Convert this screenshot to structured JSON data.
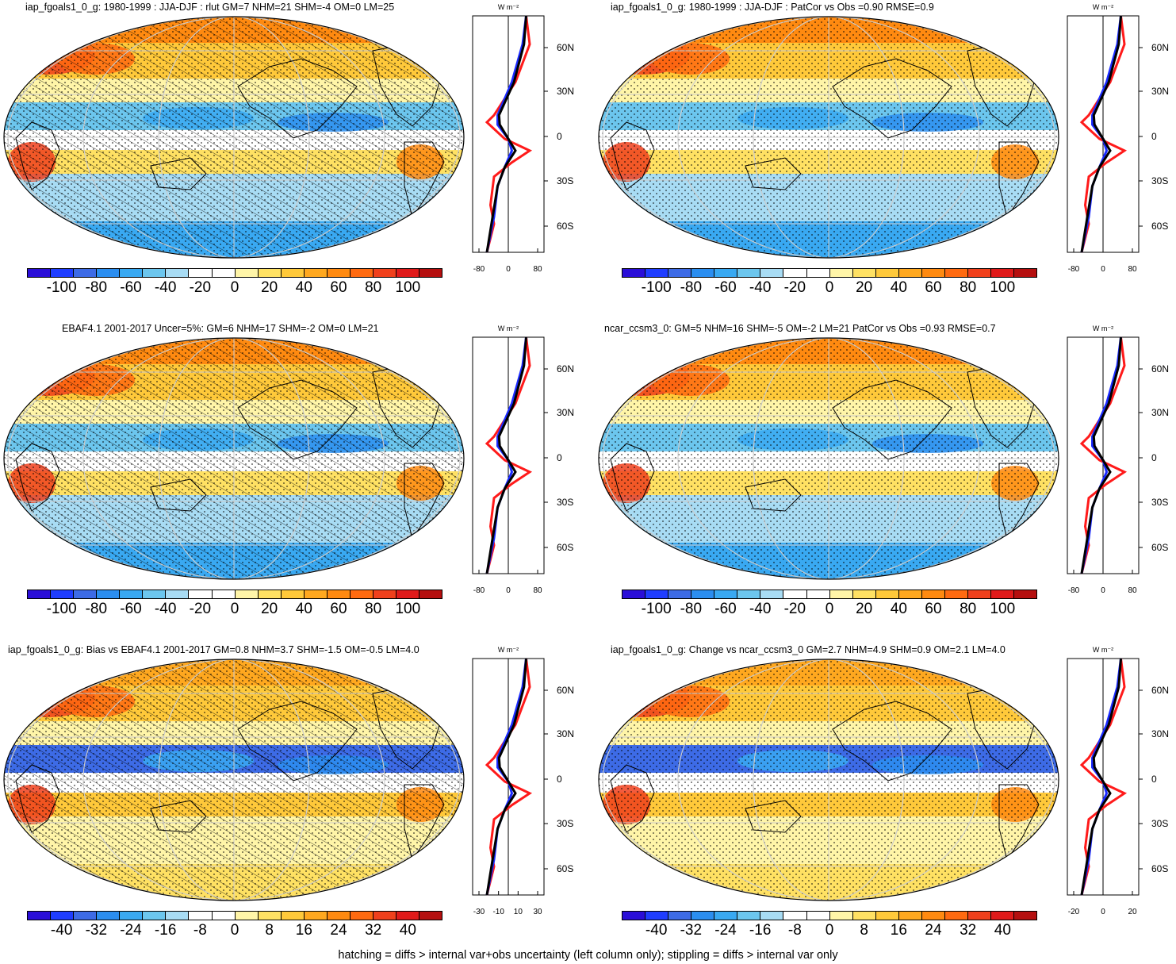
{
  "panels": [
    {
      "id": "p1",
      "title": "iap_fgoals1_0_g: 1980-1999 : JJA-DJF : rlut GM=7 NHM=21 SHM=-4 OM=0 LM=25",
      "colorbar_labels": [
        "-100",
        "-80",
        "-60",
        "-40",
        "-20",
        "0",
        "20",
        "40",
        "60",
        "80",
        "100"
      ],
      "zonal_xticks": [
        "-80",
        "0",
        "80"
      ],
      "hatched": true
    },
    {
      "id": "p2",
      "title": "iap_fgoals1_0_g: 1980-1999 : JJA-DJF : PatCor vs Obs =0.90 RMSE=0.9",
      "colorbar_labels": [
        "-100",
        "-80",
        "-60",
        "-40",
        "-20",
        "0",
        "20",
        "40",
        "60",
        "80",
        "100"
      ],
      "zonal_xticks": [
        "-80",
        "0",
        "80"
      ],
      "hatched": false
    },
    {
      "id": "p3",
      "title": "EBAF4.1 2001-2017 Uncer=5%: GM=6 NHM=17 SHM=-2 OM=0 LM=21",
      "colorbar_labels": [
        "-100",
        "-80",
        "-60",
        "-40",
        "-20",
        "0",
        "20",
        "40",
        "60",
        "80",
        "100"
      ],
      "zonal_xticks": [
        "-80",
        "0",
        "80"
      ],
      "hatched": true
    },
    {
      "id": "p4",
      "title": "ncar_ccsm3_0: GM=5 NHM=16 SHM=-5 OM=-2 LM=21 PatCor vs Obs =0.93 RMSE=0.7",
      "colorbar_labels": [
        "-100",
        "-80",
        "-60",
        "-40",
        "-20",
        "0",
        "20",
        "40",
        "60",
        "80",
        "100"
      ],
      "zonal_xticks": [
        "-80",
        "0",
        "80"
      ],
      "hatched": false
    },
    {
      "id": "p5",
      "title": "iap_fgoals1_0_g: Bias vs EBAF4.1 2001-2017 GM=0.8 NHM=3.7 SHM=-1.5 OM=-0.5 LM=4.0",
      "colorbar_labels": [
        "-40",
        "-32",
        "-24",
        "-16",
        "-8",
        "0",
        "8",
        "16",
        "24",
        "32",
        "40"
      ],
      "zonal_xticks": [
        "-30",
        "-10",
        "10",
        "30"
      ],
      "hatched": true
    },
    {
      "id": "p6",
      "title": "iap_fgoals1_0_g: Change vs ncar_ccsm3_0 GM=2.7 NHM=4.9 SHM=0.9 OM=2.1 LM=4.0",
      "colorbar_labels": [
        "-40",
        "-32",
        "-24",
        "-16",
        "-8",
        "0",
        "8",
        "16",
        "24",
        "32",
        "40"
      ],
      "zonal_xticks": [
        "-20",
        "0",
        "20"
      ],
      "hatched": false
    }
  ],
  "zonal_units": "W m⁻²",
  "lat_labels": [
    "60N",
    "30N",
    "0",
    "30S",
    "60S"
  ],
  "colorbar_colors": [
    "#2a0ed8",
    "#1f3dff",
    "#3d6be6",
    "#2b8ef0",
    "#39a9f2",
    "#6cc6ee",
    "#a8dcf4",
    "#ffffff",
    "#ffffff",
    "#fff5a8",
    "#ffe163",
    "#ffc93a",
    "#ffa81f",
    "#ff8a10",
    "#ff6a10",
    "#f0401c",
    "#e01a1a",
    "#b50f0f"
  ],
  "footer": "hatching = diffs > internal var+obs uncertainty (left column only); stippling = diffs > internal var only"
}
